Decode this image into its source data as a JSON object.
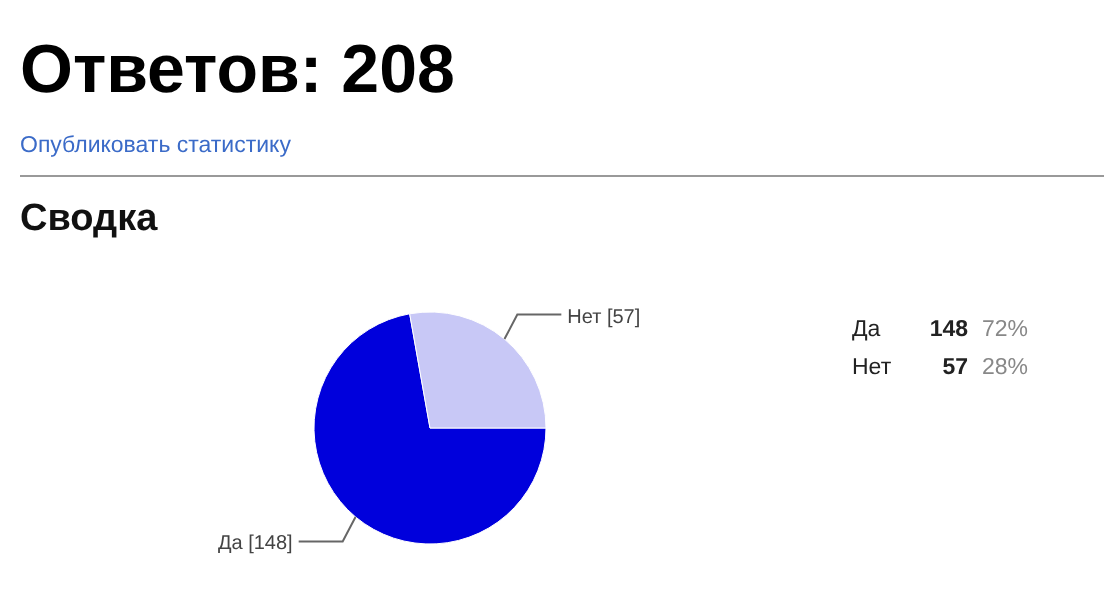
{
  "chart_data": [
    {
      "type": "pie",
      "title": "Ответов: 208",
      "subtitle": "Сводка",
      "annotations": [
        "Опубликовать статистику"
      ],
      "categories": [
        "Да",
        "Нет"
      ],
      "values": [
        148,
        57
      ],
      "colors": [
        "#0000dc",
        "#c8c8f6"
      ],
      "value_labels": [
        "[148]",
        "[57]"
      ]
    },
    {
      "type": "other",
      "categories": [
        "Да",
        "Нет"
      ],
      "values": [
        148,
        57
      ],
      "data_labels": true,
      "annotations": [
        "72%",
        "28%"
      ]
    }
  ]
}
